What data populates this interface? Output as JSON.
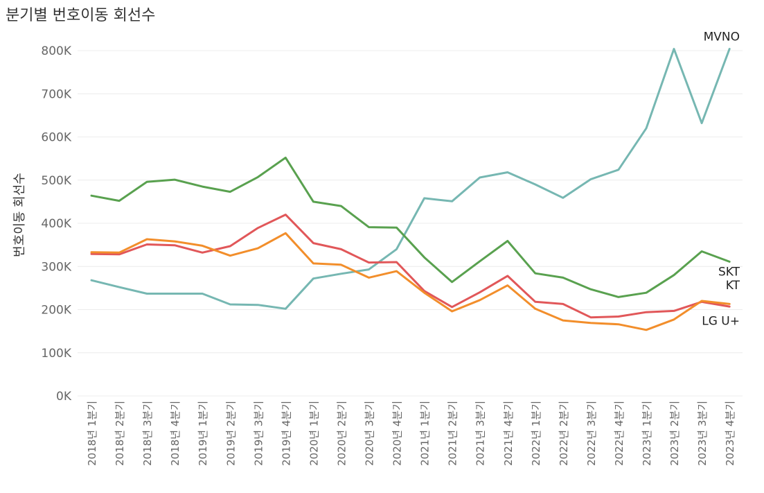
{
  "chart_data": {
    "type": "line",
    "title": "분기별 번호이동 회선수",
    "xlabel": "",
    "ylabel": "번호이동 회선수",
    "ylim": [
      0,
      800000
    ],
    "y_ticks": [
      "0K",
      "100K",
      "200K",
      "300K",
      "400K",
      "500K",
      "600K",
      "700K",
      "800K"
    ],
    "y_tick_values": [
      0,
      100000,
      200000,
      300000,
      400000,
      500000,
      600000,
      700000,
      800000
    ],
    "grid": true,
    "legend": "inline labels at line ends (right)",
    "categories": [
      "2018년 1분기",
      "2018년 2분기",
      "2018년 3분기",
      "2018년 4분기",
      "2019년 1분기",
      "2019년 2분기",
      "2019년 3분기",
      "2019년 4분기",
      "2020년 1분기",
      "2020년 2분기",
      "2020년 3분기",
      "2020년 4분기",
      "2021년 1분기",
      "2021년 2분기",
      "2021년 3분기",
      "2021년 4분기",
      "2022년 1분기",
      "2022년 2분기",
      "2022년 3분기",
      "2022년 4분기",
      "2023년 1분기",
      "2023년 2분기",
      "2023년 3분기",
      "2023년 4분기"
    ],
    "series": [
      {
        "name": "MVNO",
        "color": "#76b7b2",
        "values": [
          268000,
          252000,
          237000,
          237000,
          237000,
          212000,
          211000,
          202000,
          272000,
          283000,
          293000,
          340000,
          458000,
          451000,
          506000,
          518000,
          490000,
          459000,
          502000,
          524000,
          620000,
          804000,
          632000,
          804000
        ]
      },
      {
        "name": "SKT",
        "color": "#59a14f",
        "values": [
          464000,
          452000,
          496000,
          501000,
          485000,
          473000,
          507000,
          552000,
          450000,
          440000,
          391000,
          390000,
          321000,
          264000,
          312000,
          359000,
          284000,
          274000,
          247000,
          229000,
          239000,
          280000,
          335000,
          311000
        ]
      },
      {
        "name": "KT",
        "color": "#e15759",
        "values": [
          329000,
          328000,
          351000,
          349000,
          332000,
          347000,
          389000,
          420000,
          354000,
          340000,
          309000,
          310000,
          243000,
          206000,
          240000,
          278000,
          218000,
          213000,
          182000,
          184000,
          194000,
          197000,
          218000,
          207000
        ]
      },
      {
        "name": "LG U+",
        "color": "#f28e2b",
        "values": [
          333000,
          332000,
          363000,
          358000,
          348000,
          325000,
          342000,
          377000,
          307000,
          304000,
          274000,
          289000,
          239000,
          196000,
          222000,
          256000,
          202000,
          175000,
          169000,
          166000,
          153000,
          177000,
          220000,
          213000
        ]
      }
    ]
  }
}
